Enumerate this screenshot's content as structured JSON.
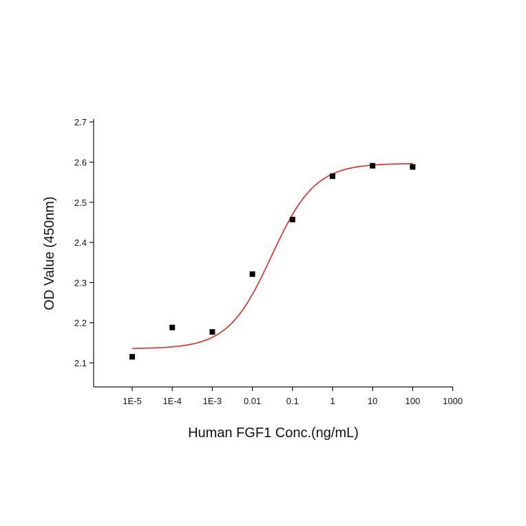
{
  "chart_data": {
    "type": "scatter",
    "title": "",
    "xlabel": "Human FGF1 Conc.(ng/mL)",
    "ylabel": "OD Value (450nm)",
    "x_scale": "log",
    "xlim": [
      1e-06,
      1000
    ],
    "ylim": [
      2.05,
      2.7
    ],
    "x_ticks": [
      1e-05,
      0.0001,
      0.001,
      0.01,
      0.1,
      1,
      10,
      100,
      1000
    ],
    "x_tick_labels": [
      "1E-5",
      "1E-4",
      "1E-3",
      "0.01",
      "0.1",
      "1",
      "10",
      "100",
      "1000"
    ],
    "y_ticks": [
      2.1,
      2.2,
      2.3,
      2.4,
      2.5,
      2.6,
      2.7
    ],
    "y_tick_labels": [
      "2.1",
      "2.2",
      "2.3",
      "2.4",
      "2.5",
      "2.6",
      "2.7"
    ],
    "grid": false,
    "points": {
      "color": "#000000",
      "x": [
        1e-05,
        0.0001,
        0.001,
        0.01,
        0.1,
        1,
        10,
        100
      ],
      "y": [
        2.115,
        2.188,
        2.177,
        2.321,
        2.457,
        2.565,
        2.591,
        2.588
      ]
    },
    "fit_curve": {
      "type": "four-parameter-logistic",
      "color": "#e8251f",
      "bottom": 2.135,
      "top": 2.597,
      "ec50": 0.03,
      "hill": 0.8,
      "x_range": [
        1e-05,
        100
      ]
    }
  }
}
